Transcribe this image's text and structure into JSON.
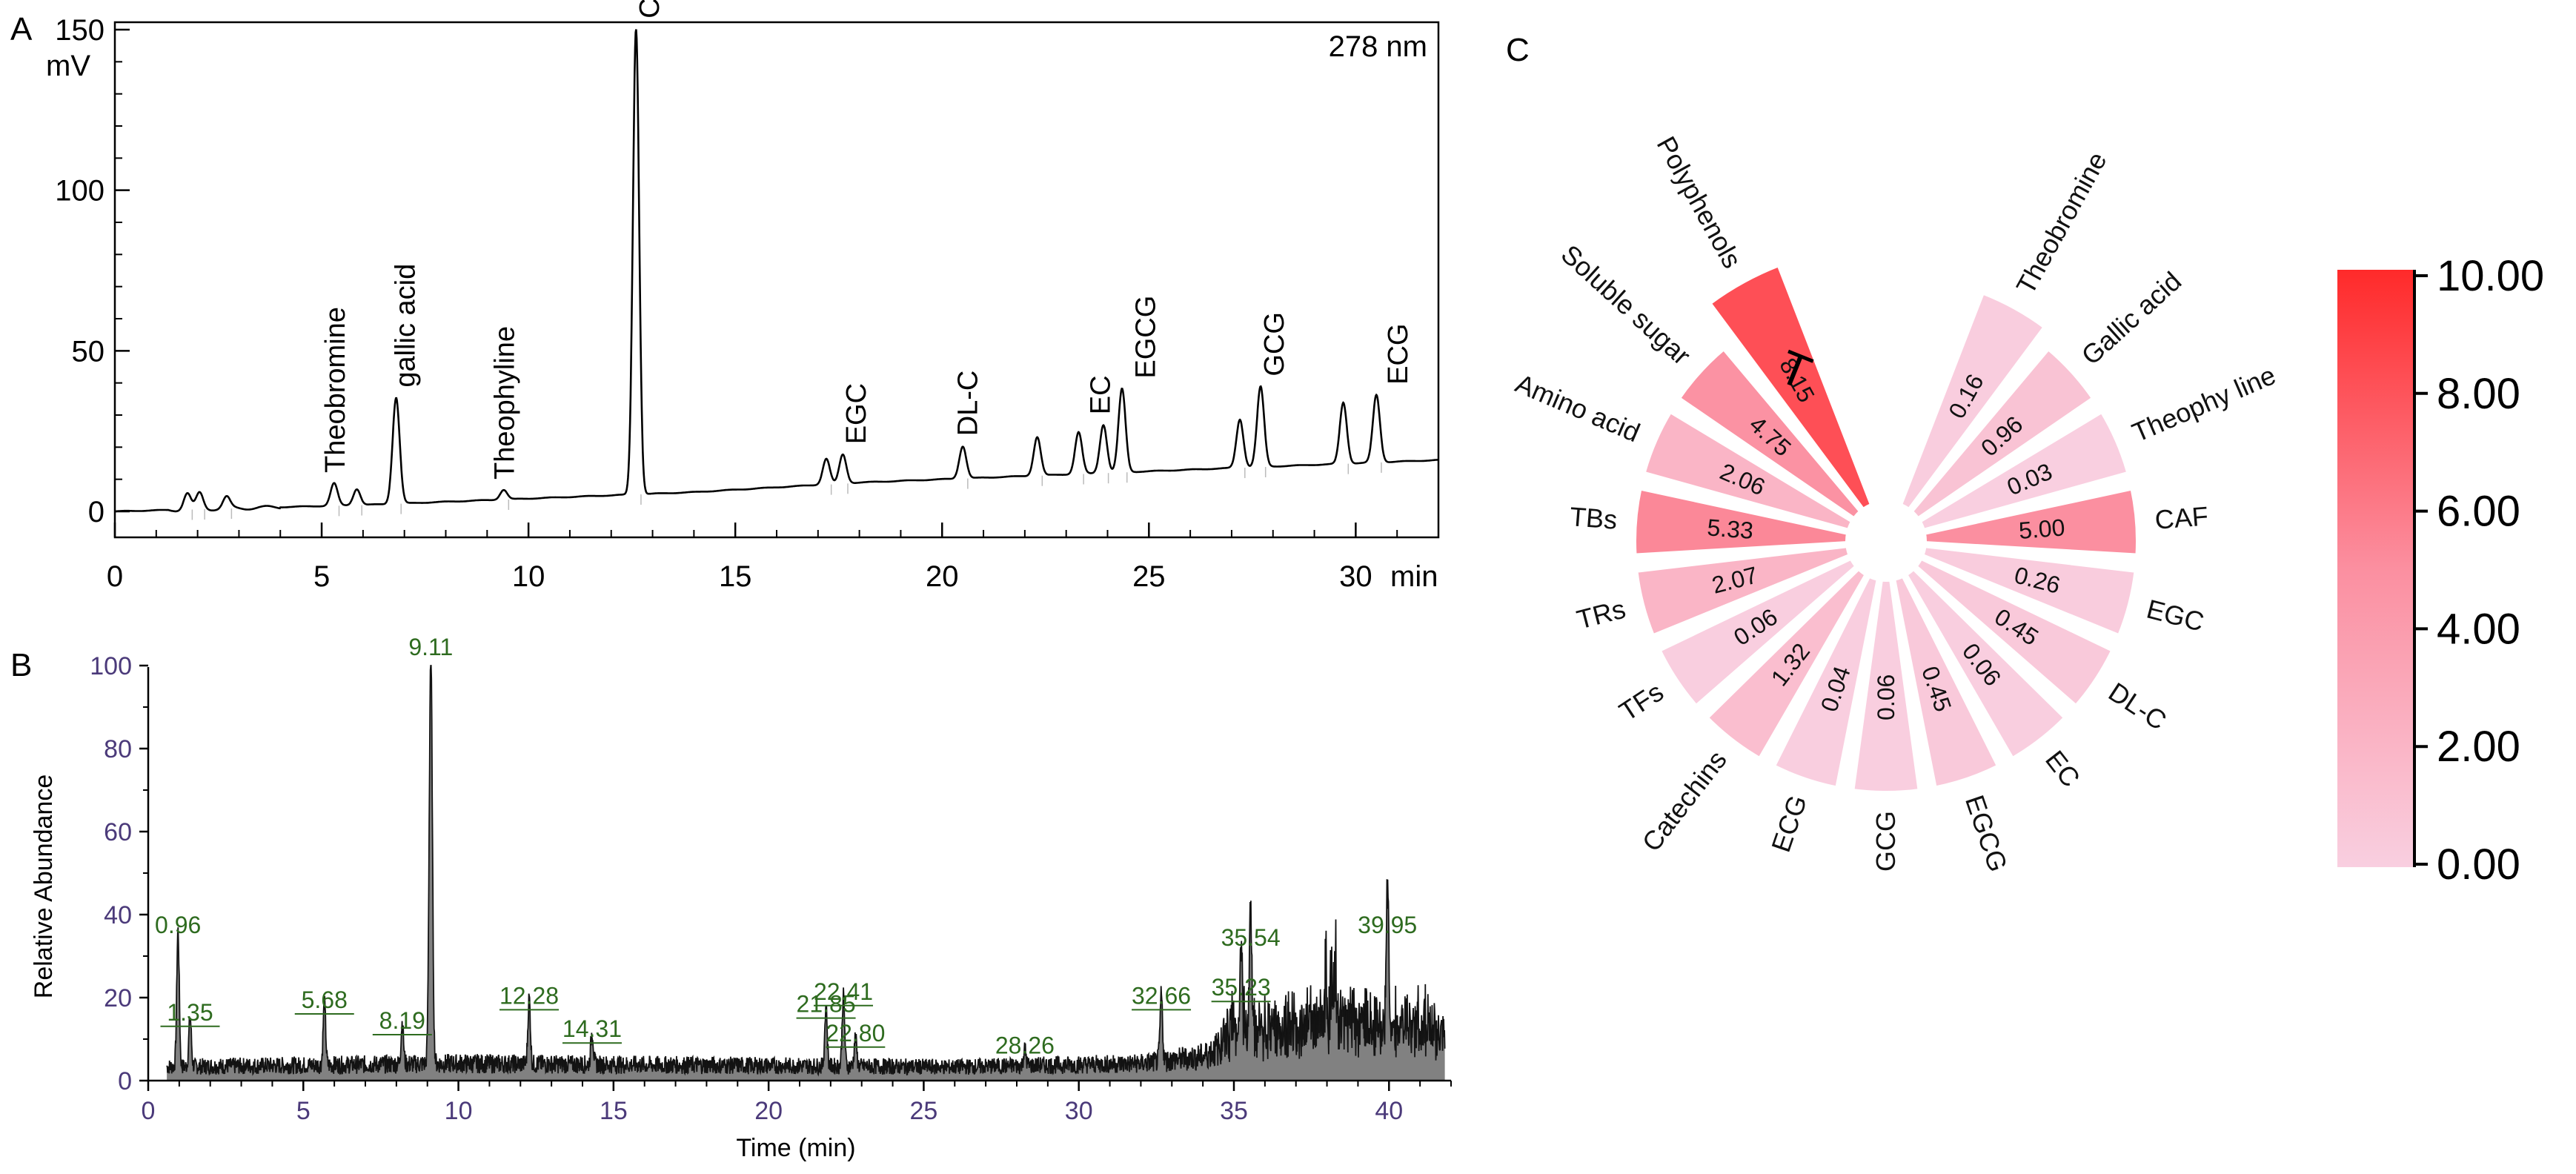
{
  "chart_data": [
    {
      "panel": "A",
      "type": "line",
      "title": "278 nm",
      "xlabel": "min",
      "ylabel": "mV",
      "xlim": [
        0,
        32
      ],
      "ylim": [
        0,
        150
      ],
      "xticks": [
        0,
        5,
        10,
        15,
        20,
        25,
        30
      ],
      "xtick_labels": [
        "0",
        "5",
        "10",
        "15",
        "20",
        "25",
        "30"
      ],
      "yticks": [
        0,
        50,
        100,
        150
      ],
      "ytick_labels": [
        "0",
        "50",
        "100",
        "150"
      ],
      "baseline": [
        [
          0,
          0
        ],
        [
          1.5,
          0.5
        ],
        [
          3,
          1
        ],
        [
          4.5,
          1.5
        ],
        [
          6,
          2
        ],
        [
          8,
          3
        ],
        [
          10,
          4
        ],
        [
          12,
          5
        ],
        [
          14,
          6
        ],
        [
          16,
          7.5
        ],
        [
          18,
          9
        ],
        [
          20,
          10
        ],
        [
          22,
          11
        ],
        [
          24,
          12
        ],
        [
          26,
          13
        ],
        [
          28,
          14
        ],
        [
          30,
          15
        ],
        [
          32,
          16
        ]
      ],
      "peaks": [
        {
          "label": "",
          "rt": 1.75,
          "height": 5
        },
        {
          "label": "",
          "rt": 2.05,
          "height": 5
        },
        {
          "label": "",
          "rt": 2.7,
          "height": 3.5
        },
        {
          "label": "Theobromine",
          "rt": 5.3,
          "height": 7
        },
        {
          "label": "",
          "rt": 5.85,
          "height": 5
        },
        {
          "label": "gallic acid",
          "rt": 6.8,
          "height": 33
        },
        {
          "label": "Theophyline",
          "rt": 9.4,
          "height": 3
        },
        {
          "label": "CAF",
          "rt": 12.6,
          "height": 145
        },
        {
          "label": "",
          "rt": 17.2,
          "height": 8
        },
        {
          "label": "EGC",
          "rt": 17.6,
          "height": 9
        },
        {
          "label": "DL-C",
          "rt": 20.5,
          "height": 10
        },
        {
          "label": "",
          "rt": 22.3,
          "height": 12
        },
        {
          "label": "",
          "rt": 23.3,
          "height": 13
        },
        {
          "label": "EC",
          "rt": 23.9,
          "height": 15
        },
        {
          "label": "EGCG",
          "rt": 24.35,
          "height": 26
        },
        {
          "label": "",
          "rt": 27.2,
          "height": 15
        },
        {
          "label": "GCG",
          "rt": 27.7,
          "height": 25
        },
        {
          "label": "",
          "rt": 29.7,
          "height": 19
        },
        {
          "label": "ECG",
          "rt": 30.5,
          "height": 21
        }
      ],
      "annotations": [
        {
          "text": "Theobromine",
          "rt": 5.3
        },
        {
          "text": "gallic acid",
          "rt": 7.0
        },
        {
          "text": "Theophyline",
          "rt": 9.4
        },
        {
          "text": "CAF",
          "rt": 12.9
        },
        {
          "text": "EGC",
          "rt": 17.9
        },
        {
          "text": "DL-C",
          "rt": 20.6
        },
        {
          "text": "EC",
          "rt": 23.8
        },
        {
          "text": "EGCG",
          "rt": 24.9
        },
        {
          "text": "GCG",
          "rt": 28.0
        },
        {
          "text": "ECG",
          "rt": 31.0
        }
      ]
    },
    {
      "panel": "B",
      "type": "line",
      "xlabel": "Time (min)",
      "ylabel": "Relative Abundance",
      "xlim": [
        0,
        42
      ],
      "ylim": [
        0,
        100
      ],
      "xticks": [
        0,
        5,
        10,
        15,
        20,
        25,
        30,
        35,
        40
      ],
      "xtick_labels": [
        "0",
        "5",
        "10",
        "15",
        "20",
        "25",
        "30",
        "35",
        "40"
      ],
      "yticks": [
        0,
        20,
        40,
        60,
        80,
        100
      ],
      "ytick_labels": [
        "0",
        "20",
        "40",
        "60",
        "80",
        "100"
      ],
      "noise_level": [
        [
          0,
          4
        ],
        [
          10,
          5
        ],
        [
          26,
          4
        ],
        [
          32,
          5
        ],
        [
          34,
          7
        ],
        [
          35,
          12
        ],
        [
          37,
          12
        ],
        [
          38,
          15
        ],
        [
          42,
          12
        ]
      ],
      "peaks": [
        {
          "label": "0.96",
          "rt": 0.96,
          "height": 33
        },
        {
          "label": "1.35",
          "rt": 1.35,
          "height": 12
        },
        {
          "label": "5.68",
          "rt": 5.68,
          "height": 15
        },
        {
          "label": "8.19",
          "rt": 8.19,
          "height": 10
        },
        {
          "label": "9.11",
          "rt": 9.11,
          "height": 100
        },
        {
          "label": "12.28",
          "rt": 12.28,
          "height": 16
        },
        {
          "label": "14.31",
          "rt": 14.31,
          "height": 8
        },
        {
          "label": "21.85",
          "rt": 21.85,
          "height": 14
        },
        {
          "label": "22.41",
          "rt": 22.41,
          "height": 17
        },
        {
          "label": "22.80",
          "rt": 22.8,
          "height": 7
        },
        {
          "label": "28.26",
          "rt": 28.26,
          "height": 4
        },
        {
          "label": "32.66",
          "rt": 32.66,
          "height": 16
        },
        {
          "label": "35.23",
          "rt": 35.23,
          "height": 18
        },
        {
          "label": "35.54",
          "rt": 35.54,
          "height": 30
        },
        {
          "label": "39.95",
          "rt": 39.95,
          "height": 33
        }
      ],
      "tick_color": "#4b3a7a",
      "label_color": "#2e6b1f"
    },
    {
      "panel": "C",
      "type": "polar-bar",
      "groups": [
        {
          "name": "Theobromine",
          "value": 0.16
        },
        {
          "name": "Gallic acid",
          "value": 0.96
        },
        {
          "name": "Theophy line",
          "value": 0.03
        },
        {
          "name": "CAF",
          "value": 5.0
        },
        {
          "name": "EGC",
          "value": 0.26
        },
        {
          "name": "DL-C",
          "value": 0.45
        },
        {
          "name": "EC",
          "value": 0.06
        },
        {
          "name": "EGCG",
          "value": 0.45
        },
        {
          "name": "GCG",
          "value": 0.06
        },
        {
          "name": "ECG",
          "value": 0.04
        },
        {
          "name": "Catechins",
          "value": 1.32
        },
        {
          "name": "TFs",
          "value": 0.06
        },
        {
          "name": "TRs",
          "value": 2.07
        },
        {
          "name": "TBs",
          "value": 5.33
        },
        {
          "name": "Amino acid",
          "value": 2.06
        },
        {
          "name": "Soluble sugar",
          "value": 4.75
        },
        {
          "name": "Polyphenols",
          "value": 8.15
        }
      ],
      "group_label": "T",
      "colorbar": {
        "min": 0,
        "max": 10,
        "ticks": [
          "0.00",
          "2.00",
          "4.00",
          "6.00",
          "8.00",
          "10.00"
        ],
        "color_low": "#f9cfe0",
        "color_high": "#ff2a2a"
      }
    }
  ],
  "panel_labels": {
    "a": "A",
    "b": "B",
    "c": "C"
  }
}
